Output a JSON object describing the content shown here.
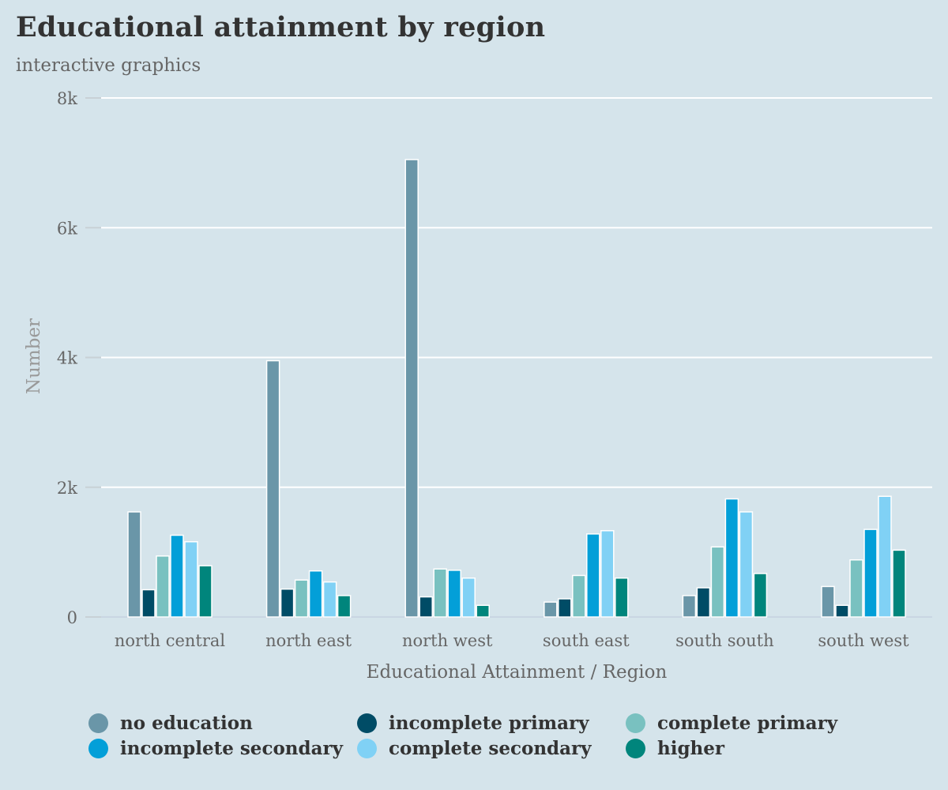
{
  "header": {
    "title": "Educational attainment by region",
    "subtitle": "interactive graphics"
  },
  "chart_data": {
    "type": "bar",
    "title": "Educational attainment by region",
    "subtitle": "interactive graphics",
    "xlabel": "Educational Attainment / Region",
    "ylabel": "Number",
    "ylim": [
      0,
      8000
    ],
    "yticks": [
      0,
      2000,
      4000,
      6000,
      8000
    ],
    "ytick_labels": [
      "0",
      "2k",
      "4k",
      "6k",
      "8k"
    ],
    "grid": true,
    "legend_position": "bottom",
    "categories": [
      "north central",
      "north east",
      "north west",
      "south east",
      "south south",
      "south west"
    ],
    "series": [
      {
        "name": "no education",
        "color": "#6a96a8",
        "values": [
          1620,
          3950,
          7050,
          230,
          330,
          470
        ]
      },
      {
        "name": "incomplete primary",
        "color": "#004c66",
        "values": [
          420,
          430,
          310,
          280,
          450,
          180
        ]
      },
      {
        "name": "complete primary",
        "color": "#79c1c0",
        "values": [
          940,
          570,
          740,
          640,
          1080,
          880
        ]
      },
      {
        "name": "incomplete secondary",
        "color": "#039fd8",
        "values": [
          1260,
          710,
          720,
          1280,
          1820,
          1350
        ]
      },
      {
        "name": "complete secondary",
        "color": "#80d1f5",
        "values": [
          1160,
          540,
          600,
          1330,
          1620,
          1860
        ]
      },
      {
        "name": "higher",
        "color": "#00857c",
        "values": [
          790,
          330,
          180,
          600,
          670,
          1030
        ]
      }
    ]
  }
}
